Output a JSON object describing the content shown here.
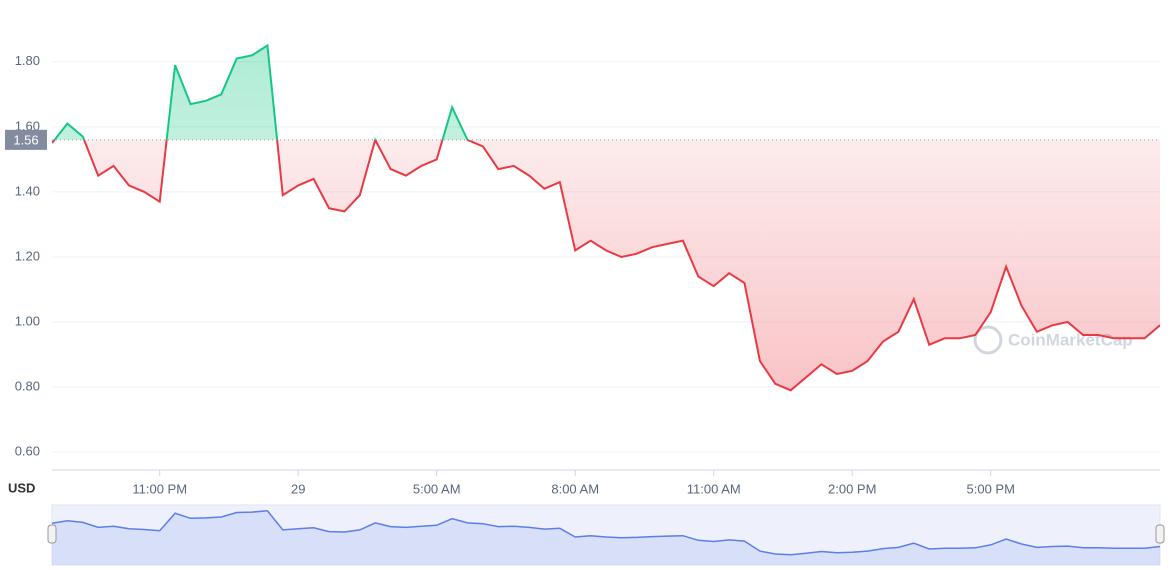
{
  "chart_data": {
    "type": "line",
    "currency": "USD",
    "watermark": "CoinMarketCap",
    "reference": 1.56,
    "up_color": "#16c784",
    "down_color": "#ea3943",
    "navigator_color": "#5d7de8",
    "x": [
      "8:40 PM",
      "9:00 PM",
      "9:20 PM",
      "9:40 PM",
      "10:00 PM",
      "10:20 PM",
      "10:40 PM",
      "11:00 PM",
      "11:20 PM",
      "11:40 PM",
      "12:00 AM",
      "12:20 AM",
      "12:40 AM",
      "1:00 AM",
      "1:20 AM",
      "1:40 AM",
      "2:00 AM",
      "2:20 AM",
      "2:40 AM",
      "3:00 AM",
      "3:20 AM",
      "3:40 AM",
      "4:00 AM",
      "4:20 AM",
      "4:40 AM",
      "5:00 AM",
      "5:20 AM",
      "5:40 AM",
      "6:00 AM",
      "6:20 AM",
      "6:40 AM",
      "7:00 AM",
      "7:20 AM",
      "7:40 AM",
      "8:00 AM",
      "8:20 AM",
      "8:40 AM",
      "9:00 AM",
      "9:20 AM",
      "9:40 AM",
      "10:00 AM",
      "10:20 AM",
      "10:40 AM",
      "11:00 AM",
      "11:20 AM",
      "11:40 AM",
      "12:00 PM",
      "12:20 PM",
      "12:40 PM",
      "1:00 PM",
      "1:20 PM",
      "1:40 PM",
      "2:00 PM",
      "2:20 PM",
      "2:40 PM",
      "3:00 PM",
      "3:20 PM",
      "3:40 PM",
      "4:00 PM",
      "4:20 PM",
      "4:40 PM",
      "5:00 PM",
      "5:20 PM",
      "5:40 PM",
      "6:00 PM",
      "6:20 PM",
      "6:40 PM",
      "7:00 PM",
      "7:20 PM",
      "7:40 PM",
      "8:00 PM",
      "8:20 PM",
      "8:40 PM"
    ],
    "values": [
      1.55,
      1.61,
      1.57,
      1.45,
      1.48,
      1.42,
      1.4,
      1.37,
      1.79,
      1.67,
      1.68,
      1.7,
      1.81,
      1.82,
      1.85,
      1.39,
      1.42,
      1.44,
      1.35,
      1.34,
      1.39,
      1.56,
      1.47,
      1.45,
      1.48,
      1.5,
      1.66,
      1.56,
      1.54,
      1.47,
      1.48,
      1.45,
      1.41,
      1.43,
      1.22,
      1.25,
      1.22,
      1.2,
      1.21,
      1.23,
      1.24,
      1.25,
      1.14,
      1.11,
      1.15,
      1.12,
      0.88,
      0.81,
      0.79,
      0.83,
      0.87,
      0.84,
      0.85,
      0.88,
      0.94,
      0.97,
      1.07,
      0.93,
      0.95,
      0.95,
      0.96,
      1.03,
      1.17,
      1.05,
      0.97,
      0.99,
      1.0,
      0.96,
      0.96,
      0.95,
      0.95,
      0.95,
      0.99
    ],
    "ylim": [
      0.545,
      1.99
    ],
    "yticks": [
      {
        "value": 0.6,
        "label": "0.60"
      },
      {
        "value": 0.8,
        "label": "0.80"
      },
      {
        "value": 1.0,
        "label": "1.00"
      },
      {
        "value": 1.2,
        "label": "1.20"
      },
      {
        "value": 1.4,
        "label": "1.40"
      },
      {
        "value": 1.6,
        "label": "1.60"
      },
      {
        "value": 1.8,
        "label": "1.80"
      }
    ],
    "xticks": [
      "11:00 PM",
      {
        "value": "2:00 AM",
        "label": "29"
      },
      "5:00 AM",
      "8:00 AM",
      "11:00 AM",
      "2:00 PM",
      "5:00 PM"
    ],
    "grid": true
  }
}
